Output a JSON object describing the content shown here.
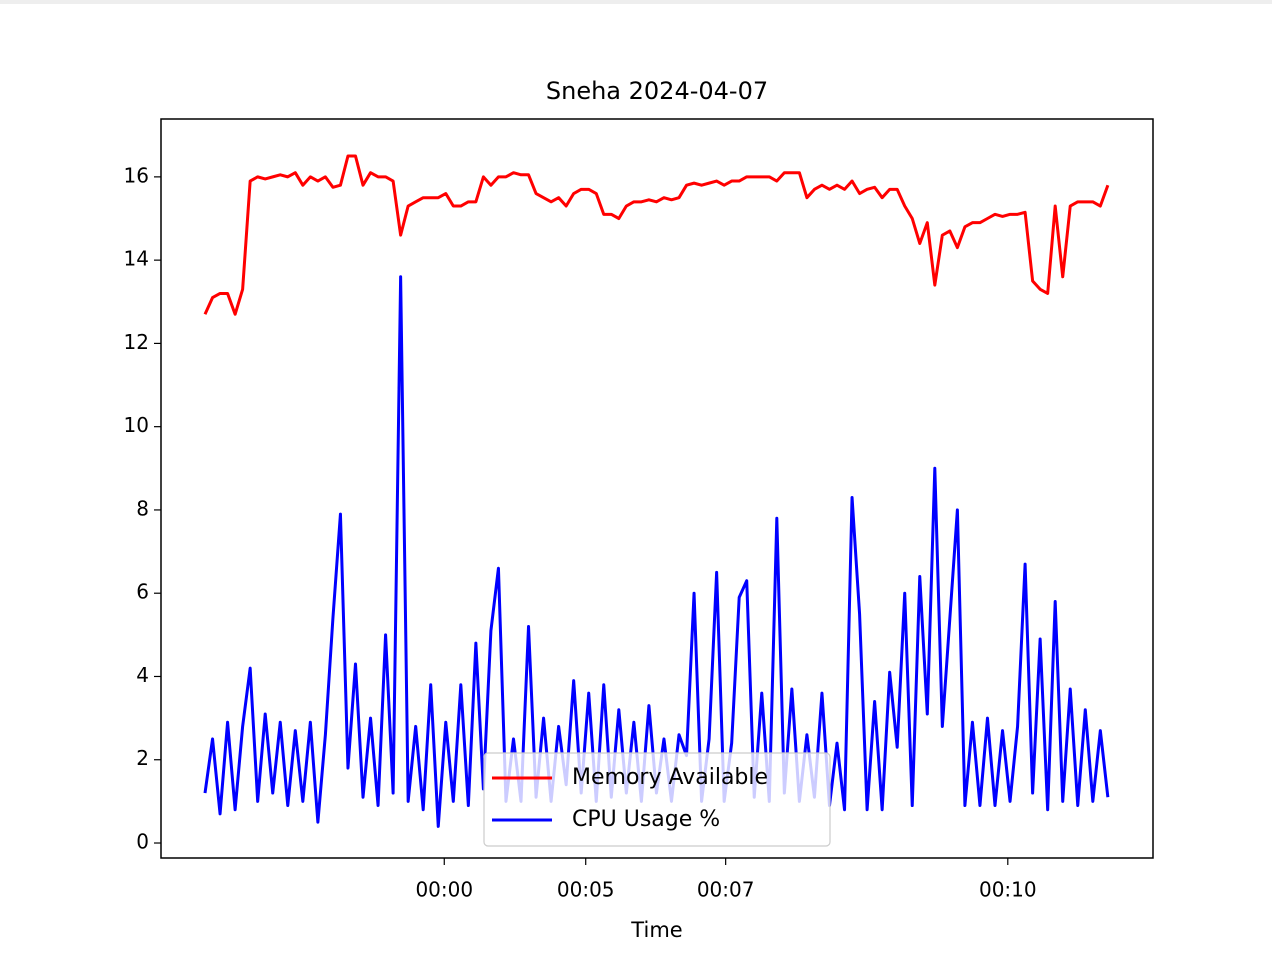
{
  "chart_data": {
    "type": "line",
    "title": "Sneha 2024-04-07",
    "xlabel": "Time",
    "x": [
      0,
      1,
      2,
      3,
      4,
      5,
      6,
      7,
      8,
      9,
      10,
      11,
      12,
      13,
      14,
      15,
      16,
      17,
      18,
      19,
      20,
      21,
      22,
      23,
      24,
      25,
      26,
      27,
      28,
      29,
      30,
      31,
      32,
      33,
      34,
      35,
      36,
      37,
      38,
      39,
      40,
      41,
      42,
      43,
      44,
      45,
      46,
      47,
      48,
      49,
      50,
      51,
      52,
      53,
      54,
      55,
      56,
      57,
      58,
      59,
      60,
      61,
      62,
      63,
      64,
      65,
      66,
      67,
      68,
      69,
      70,
      71,
      72,
      73,
      74,
      75,
      76,
      77,
      78,
      79,
      80,
      81,
      82,
      83,
      84,
      85,
      86,
      87,
      88,
      89,
      90,
      91,
      92,
      93,
      94,
      95,
      96,
      97,
      98,
      99,
      100,
      101,
      102,
      103,
      104,
      105,
      106,
      107,
      108,
      109,
      110,
      111,
      112,
      113,
      114,
      115,
      116,
      117,
      118,
      119,
      120
    ],
    "series": [
      {
        "name": "Memory Available",
        "color": "#ff0000",
        "values": [
          12.7,
          13.1,
          13.2,
          13.2,
          12.7,
          13.3,
          15.9,
          16.0,
          15.95,
          16.0,
          16.05,
          16.0,
          16.1,
          15.8,
          16.0,
          15.9,
          16.0,
          15.75,
          15.8,
          16.5,
          16.5,
          15.8,
          16.1,
          16.0,
          16.0,
          15.9,
          14.6,
          15.3,
          15.4,
          15.5,
          15.5,
          15.5,
          15.6,
          15.3,
          15.3,
          15.4,
          15.4,
          16.0,
          15.8,
          16.0,
          16.0,
          16.1,
          16.05,
          16.05,
          15.6,
          15.5,
          15.4,
          15.5,
          15.3,
          15.6,
          15.7,
          15.7,
          15.6,
          15.1,
          15.1,
          15.0,
          15.3,
          15.4,
          15.4,
          15.45,
          15.4,
          15.5,
          15.45,
          15.5,
          15.8,
          15.85,
          15.8,
          15.85,
          15.9,
          15.8,
          15.9,
          15.9,
          16.0,
          16.0,
          16.0,
          16.0,
          15.9,
          16.1,
          16.1,
          16.1,
          15.5,
          15.7,
          15.8,
          15.7,
          15.8,
          15.7,
          15.9,
          15.6,
          15.7,
          15.75,
          15.5,
          15.7,
          15.7,
          15.3,
          15.0,
          14.4,
          14.9,
          13.4,
          14.6,
          14.7,
          14.3,
          14.8,
          14.9,
          14.9,
          15.0,
          15.1,
          15.05,
          15.1,
          15.1,
          15.15,
          13.5,
          13.3,
          13.2,
          15.3,
          13.6,
          15.3,
          15.4,
          15.4,
          15.4,
          15.3,
          15.8
        ]
      },
      {
        "name": "CPU Usage %",
        "color": "#0000ff",
        "values": [
          1.2,
          2.5,
          0.7,
          2.9,
          0.8,
          2.8,
          4.2,
          1.0,
          3.1,
          1.2,
          2.9,
          0.9,
          2.7,
          1.0,
          2.9,
          0.5,
          2.6,
          5.4,
          7.9,
          1.8,
          4.3,
          1.1,
          3.0,
          0.9,
          5.0,
          1.2,
          13.6,
          1.0,
          2.8,
          0.8,
          3.8,
          0.4,
          2.9,
          1.0,
          3.8,
          0.9,
          4.8,
          1.3,
          5.1,
          6.6,
          1.0,
          2.5,
          1.0,
          5.2,
          1.1,
          3.0,
          1.0,
          2.8,
          1.4,
          3.9,
          1.2,
          3.6,
          1.0,
          3.8,
          1.1,
          3.2,
          1.2,
          2.9,
          1.0,
          3.3,
          1.2,
          2.5,
          1.0,
          2.6,
          2.1,
          6.0,
          1.0,
          2.5,
          6.5,
          1.0,
          2.4,
          5.9,
          6.3,
          1.1,
          3.6,
          1.0,
          7.8,
          1.2,
          3.7,
          1.0,
          2.6,
          1.1,
          3.6,
          0.9,
          2.4,
          0.8,
          8.3,
          5.5,
          0.8,
          3.4,
          0.8,
          4.1,
          2.3,
          6.0,
          0.9,
          6.4,
          3.1,
          9.0,
          2.8,
          5.4,
          8.0,
          0.9,
          2.9,
          0.9,
          3.0,
          0.9,
          2.7,
          1.0,
          2.8,
          6.7,
          1.2,
          4.9,
          0.8,
          5.8,
          1.0,
          3.7,
          0.9,
          3.2,
          1.0,
          2.7,
          1.1
        ]
      }
    ],
    "xlim": [
      -5.85,
      126
    ],
    "xticks": [
      {
        "value": 31.8,
        "label": "00:00"
      },
      {
        "value": 50.6,
        "label": "00:05"
      },
      {
        "value": 69.2,
        "label": "00:07"
      },
      {
        "value": 106.7,
        "label": "00:10"
      }
    ],
    "ylim": [
      -0.36,
      17.39
    ],
    "yticks": [
      0,
      2,
      4,
      6,
      8,
      10,
      12,
      14,
      16
    ],
    "grid": false,
    "legend": "lower center"
  }
}
